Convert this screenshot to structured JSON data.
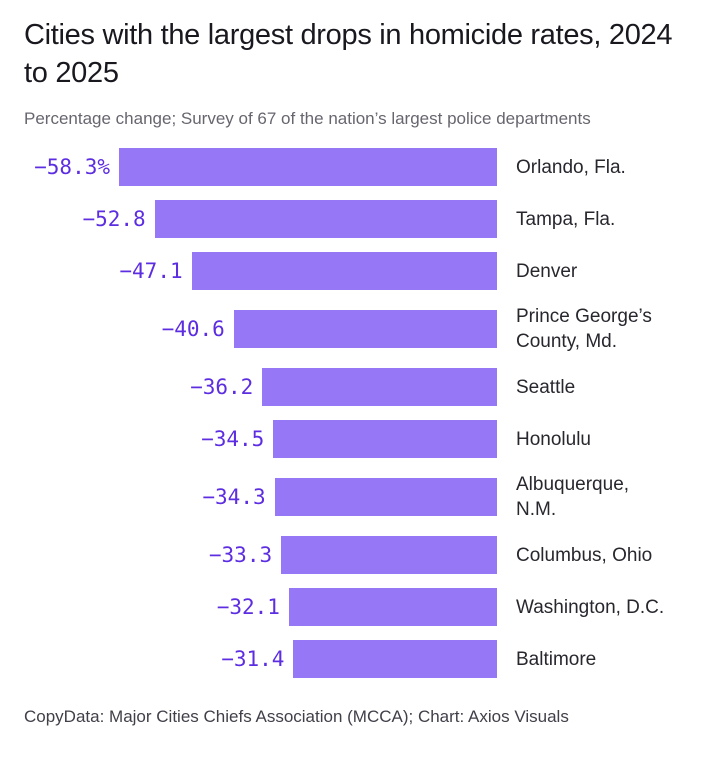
{
  "header": {
    "title": "Cities with the largest drops in homicide rates, 2024 to 2025",
    "subtitle": "Percentage change; Survey of 67 of the nation’s largest police departments"
  },
  "footer": {
    "source_line": "CopyData: Major Cities Chiefs Association (MCCA); Chart: Axios Visuals"
  },
  "colors": {
    "background": "#FFFFFF",
    "bar_fill": "#9678F7",
    "value_text": "#5C2DE1",
    "title_text": "#19181F",
    "subtitle_text": "#67666F",
    "category_text": "#28272E",
    "source_text": "#413F48"
  },
  "chart_data": {
    "type": "bar",
    "orientation": "horizontal",
    "bars_right_aligned_at_zero": true,
    "title": "Cities with the largest drops in homicide rates, 2024 to 2025",
    "subtitle": "Percentage change; Survey of 67 of the nation’s largest police departments",
    "xlabel": "Percentage change",
    "ylabel": "",
    "xlim": [
      -58.3,
      0
    ],
    "grid": false,
    "legend": "none",
    "categories": [
      "Orlando, Fla.",
      "Tampa, Fla.",
      "Denver",
      "Prince George’s County, Md.",
      "Seattle",
      "Honolulu",
      "Albuquerque, N.M.",
      "Columbus, Ohio",
      "Washington, D.C.",
      "Baltimore"
    ],
    "category_display": [
      "Orlando, Fla.",
      "Tampa, Fla.",
      "Denver",
      "Prince George’s\nCounty, Md.",
      "Seattle",
      "Honolulu",
      "Albuquerque,\nN.M.",
      "Columbus, Ohio",
      "Washington, D.C.",
      "Baltimore"
    ],
    "values": [
      -58.3,
      -52.8,
      -47.1,
      -40.6,
      -36.2,
      -34.5,
      -34.3,
      -33.3,
      -32.1,
      -31.4
    ],
    "value_labels": [
      "−58.3%",
      "−52.8",
      "−47.1",
      "−40.6",
      "−36.2",
      "−34.5",
      "−34.3",
      "−33.3",
      "−32.1",
      "−31.4"
    ]
  }
}
